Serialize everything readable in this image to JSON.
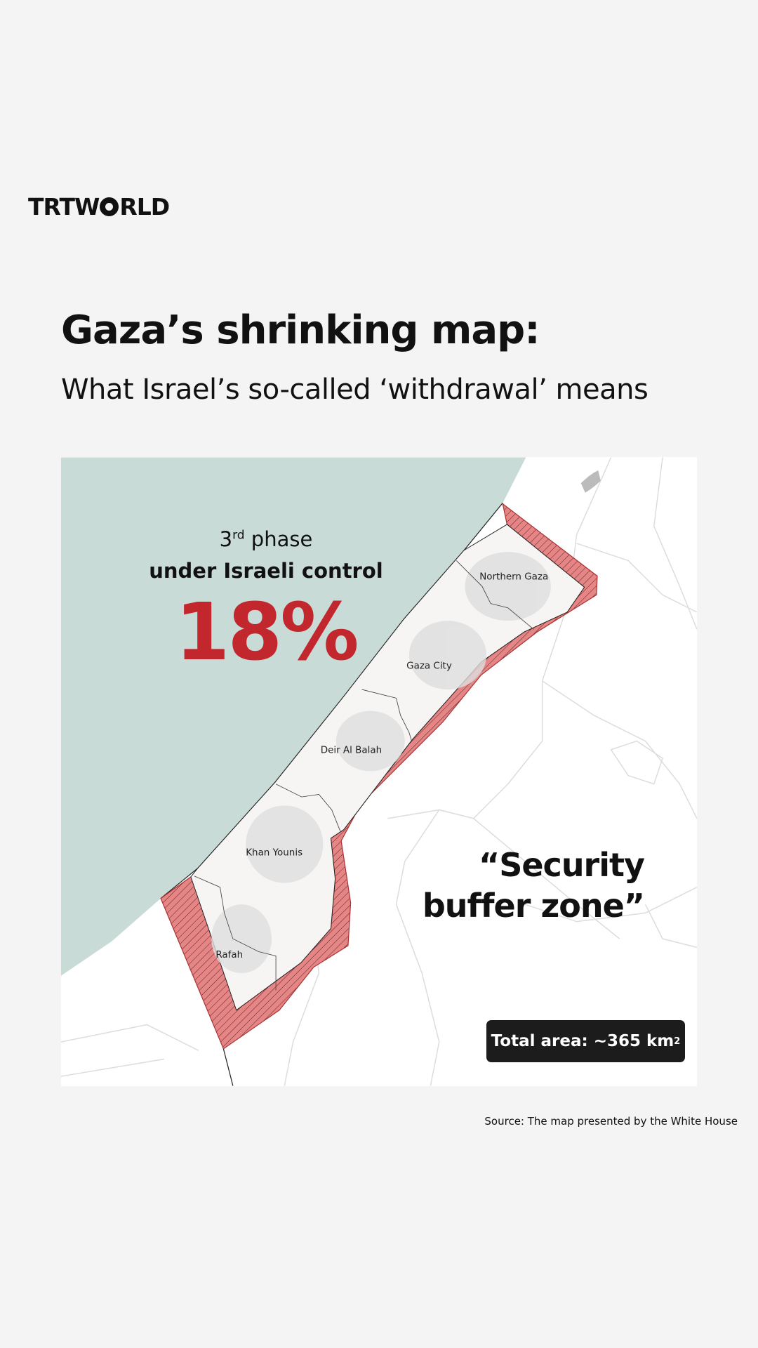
{
  "brand": {
    "logo_text": "TRTWORLD",
    "logo_left": "TRT",
    "logo_w": "W",
    "logo_right": "RLD"
  },
  "header": {
    "title": "Gaza’s shrinking map:",
    "subtitle": "What Israel’s so-called ‘withdrawal’ means"
  },
  "map": {
    "phase_number": "3",
    "phase_suffix": "rd",
    "phase_word": " phase",
    "control_label": "under Israeli control",
    "percentage": "18%",
    "zone_line1": "“Security",
    "zone_line2": "buffer zone”",
    "total_area": "Total area: ~365 km",
    "total_area_sup": "2",
    "regions": [
      "Northern Gaza",
      "Gaza City",
      "Deir Al Balah",
      "Khan Younis",
      "Rafah"
    ],
    "colors": {
      "sea": "#c9dbd7",
      "buffer": "#e07a7a",
      "accent": "#c1272d",
      "land": "#ffffff",
      "strip": "#f6f5f4"
    }
  },
  "footer": {
    "source": "Source: The map presented by the White House"
  }
}
